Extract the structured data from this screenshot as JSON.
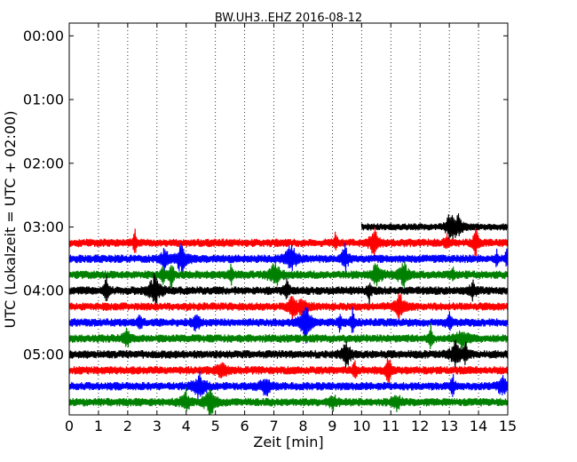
{
  "chart_data": {
    "type": "line",
    "subtype": "dayplot-seismogram",
    "title": "BW.UH3..EHZ 2016-08-12",
    "xlabel": "Zeit  [min]",
    "ylabel": "UTC (Lokalzeit = UTC + 02:00)",
    "xlim": [
      0,
      15
    ],
    "x_ticks": [
      "0",
      "1",
      "2",
      "3",
      "4",
      "5",
      "6",
      "7",
      "8",
      "9",
      "10",
      "11",
      "12",
      "13",
      "14",
      "15"
    ],
    "y_ticks": [
      "00:00",
      "01:00",
      "02:00",
      "03:00",
      "04:00",
      "05:00"
    ],
    "y_tick_hours": [
      0,
      1,
      2,
      3,
      4,
      5
    ],
    "ylim_hours": [
      -0.2,
      5.95
    ],
    "grid": "x-dotted",
    "row_interval_min": 15,
    "colors": [
      "#ff0000",
      "#0000ff",
      "#008000",
      "#000000"
    ],
    "rows": [
      {
        "start": "03:00",
        "color": "#000000",
        "t_start_min": 10,
        "t_end_min": 15
      },
      {
        "start": "03:15",
        "color": "#ff0000"
      },
      {
        "start": "03:30",
        "color": "#0000ff"
      },
      {
        "start": "03:45",
        "color": "#008000"
      },
      {
        "start": "04:00",
        "color": "#000000"
      },
      {
        "start": "04:15",
        "color": "#ff0000"
      },
      {
        "start": "04:30",
        "color": "#0000ff"
      },
      {
        "start": "04:45",
        "color": "#008000"
      },
      {
        "start": "05:00",
        "color": "#000000"
      },
      {
        "start": "05:15",
        "color": "#ff0000"
      },
      {
        "start": "05:30",
        "color": "#0000ff"
      },
      {
        "start": "05:45",
        "color": "#008000"
      }
    ]
  }
}
